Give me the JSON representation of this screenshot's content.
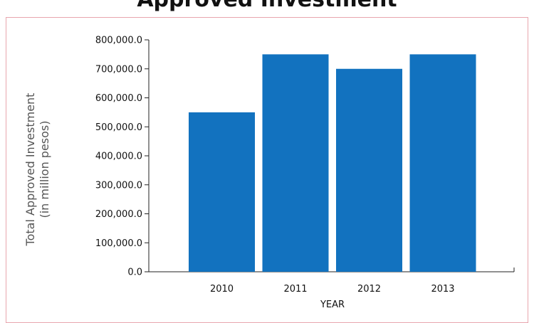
{
  "chart_data": {
    "type": "bar",
    "title": "Approved Investment",
    "categories": [
      "2010",
      "2011",
      "2012",
      "2013"
    ],
    "values": [
      550000,
      750000,
      700000,
      750000
    ],
    "xlabel": "YEAR",
    "ylabel_line1": "Total Approved Investment",
    "ylabel_line2": "(in million pesos)",
    "ylim": [
      0,
      800000
    ],
    "yticks": [
      0,
      100000,
      200000,
      300000,
      400000,
      500000,
      600000,
      700000,
      800000
    ],
    "ytick_labels": [
      "0.0",
      "100,000.0",
      "200,000.0",
      "300,000.0",
      "400,000.0",
      "500,000.0",
      "600,000.0",
      "700,000.0",
      "800,000.0"
    ],
    "bar_color": "#1272bf",
    "grid": false,
    "legend": "none"
  }
}
